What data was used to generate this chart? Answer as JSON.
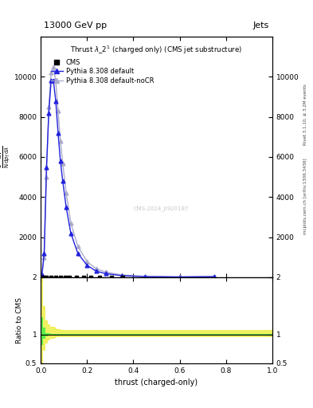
{
  "title_top": "13000 GeV pp",
  "title_right": "Jets",
  "plot_title": "Thrust $\\lambda$_2$^1$ (charged only) (CMS jet substructure)",
  "xlabel": "thrust (charged-only)",
  "ylabel_main_parts": [
    "mathrm d^2N",
    "mathrm d p_T mathrm d lambda",
    "1",
    "mathrm N / mathrm d p_T mathrm d lambda"
  ],
  "ylabel_ratio": "Ratio to CMS",
  "right_label1": "Rivet 3.1.10, ≥ 3.2M events",
  "right_label2": "mcplots.cern.ch [arXiv:1306.3436]",
  "watermark": "CMS-2024_JI920187",
  "cms_x": [
    0.005,
    0.015,
    0.025,
    0.045,
    0.065,
    0.085,
    0.105,
    0.125,
    0.155,
    0.185,
    0.215,
    0.255,
    0.305,
    0.355
  ],
  "cms_y": [
    2.0,
    2.0,
    2.0,
    2.0,
    2.0,
    2.0,
    2.0,
    2.0,
    2.0,
    2.0,
    2.0,
    2.0,
    2.0,
    2.0
  ],
  "py_default_x": [
    0.005,
    0.015,
    0.025,
    0.035,
    0.045,
    0.055,
    0.065,
    0.075,
    0.085,
    0.095,
    0.11,
    0.13,
    0.16,
    0.2,
    0.24,
    0.28,
    0.35,
    0.45,
    0.6,
    0.75
  ],
  "py_default_y": [
    100,
    1200,
    5500,
    8200,
    9800,
    9800,
    8800,
    7200,
    5800,
    4800,
    3500,
    2200,
    1200,
    600,
    300,
    180,
    80,
    30,
    15,
    30
  ],
  "py_nocr_x": [
    0.005,
    0.015,
    0.025,
    0.035,
    0.045,
    0.055,
    0.065,
    0.075,
    0.085,
    0.095,
    0.11,
    0.13,
    0.16,
    0.2,
    0.24,
    0.28,
    0.35,
    0.45,
    0.6,
    0.75
  ],
  "py_nocr_y": [
    80,
    1000,
    5000,
    8500,
    10200,
    10500,
    9800,
    8300,
    6800,
    5700,
    4200,
    2700,
    1550,
    780,
    420,
    260,
    110,
    40,
    18,
    35
  ],
  "ratio_x": [
    0.005,
    0.015,
    0.025,
    0.035,
    0.045,
    0.055,
    0.065,
    0.075,
    0.085,
    0.095,
    0.11,
    0.13,
    0.16,
    0.2,
    0.24,
    0.28,
    0.35,
    0.45,
    0.6,
    0.75,
    0.875
  ],
  "ratio_x_edges": [
    0.0,
    0.01,
    0.02,
    0.03,
    0.04,
    0.05,
    0.06,
    0.07,
    0.08,
    0.09,
    0.1,
    0.12,
    0.14,
    0.18,
    0.22,
    0.26,
    0.3,
    0.4,
    0.5,
    0.7,
    0.8,
    1.0
  ],
  "green_lo": [
    0.82,
    0.92,
    0.97,
    0.98,
    0.99,
    0.99,
    0.99,
    0.995,
    0.995,
    0.995,
    0.995,
    0.995,
    0.995,
    0.995,
    0.995,
    0.995,
    0.995,
    0.995,
    0.995,
    0.995,
    0.995
  ],
  "green_hi": [
    1.3,
    1.12,
    1.03,
    1.02,
    1.01,
    1.01,
    1.01,
    1.005,
    1.005,
    1.005,
    1.005,
    1.005,
    1.005,
    1.005,
    1.005,
    1.005,
    1.005,
    1.005,
    1.005,
    1.005,
    1.005
  ],
  "yellow_lo": [
    0.5,
    0.72,
    0.85,
    0.9,
    0.93,
    0.93,
    0.94,
    0.95,
    0.95,
    0.96,
    0.96,
    0.96,
    0.96,
    0.96,
    0.96,
    0.96,
    0.96,
    0.96,
    0.96,
    0.96,
    0.96
  ],
  "yellow_hi": [
    2.0,
    1.5,
    1.25,
    1.18,
    1.14,
    1.13,
    1.12,
    1.1,
    1.09,
    1.08,
    1.08,
    1.08,
    1.08,
    1.08,
    1.08,
    1.08,
    1.08,
    1.08,
    1.08,
    1.08,
    1.08
  ],
  "ylim_main": [
    0,
    12000
  ],
  "ylim_ratio": [
    0.5,
    2.0
  ],
  "color_default": "#2222dd",
  "color_nocr": "#aaaacc",
  "color_cms": "#000000",
  "color_green_band": "#44ee44",
  "color_yellow_band": "#eeee44",
  "bg_color": "#ffffff"
}
